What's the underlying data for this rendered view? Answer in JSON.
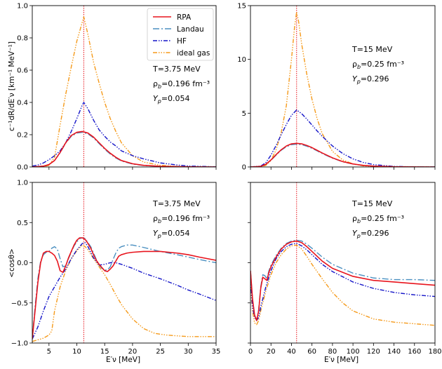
{
  "legend": [
    {
      "key": "rpa",
      "label": "RPA",
      "color": "#e8141d",
      "dash": ""
    },
    {
      "key": "landau",
      "label": "Landau",
      "color": "#4a8fc0",
      "dash": "9,3,2,3"
    },
    {
      "key": "hf",
      "label": "HF",
      "color": "#1414c8",
      "dash": "6,2,1.5,2,1.5,2"
    },
    {
      "key": "ideal",
      "label": "ideal gas",
      "color": "#f59a1a",
      "dash": "6,2,1.5,2,1.5,2,1.5,2"
    }
  ],
  "ylabels": {
    "top": "c⁻¹dR/dE′ν [km⁻¹ MeV⁻¹]",
    "bottom": "<cosθ>"
  },
  "xlabel": "E′ν [MeV]",
  "chart_data": [
    {
      "id": "p00",
      "type": "line",
      "title": "",
      "xlabel": "",
      "ylabel": "c⁻¹dR/dE′ν [km⁻¹ MeV⁻¹]",
      "xlim": [
        2,
        35
      ],
      "ylim": [
        0,
        1
      ],
      "xticks": [
        5,
        10,
        15,
        20,
        25,
        30,
        35
      ],
      "xticklabels": [
        "",
        "",
        "",
        "",
        "",
        "",
        ""
      ],
      "yticks": [
        0,
        0.2,
        0.4,
        0.6,
        0.8,
        1.0
      ],
      "yticklabels": [
        "0.0",
        "0.2",
        "0.4",
        "0.6",
        "0.8",
        "1.0"
      ],
      "vline": 11.25,
      "legend": true,
      "annotation": [
        "T=3.75 MeV",
        "ρb=0.196 fm⁻³",
        "Yp=0.054"
      ],
      "series": [
        {
          "name": "RPA",
          "x": [
            2,
            4,
            5,
            6,
            7,
            8,
            9,
            10,
            11,
            12,
            13,
            14,
            15,
            16,
            17,
            18,
            20,
            22,
            25,
            30,
            35
          ],
          "y": [
            0,
            0.005,
            0.015,
            0.04,
            0.09,
            0.15,
            0.195,
            0.215,
            0.22,
            0.21,
            0.185,
            0.15,
            0.115,
            0.085,
            0.06,
            0.04,
            0.02,
            0.01,
            0.004,
            0.001,
            0
          ]
        },
        {
          "name": "Landau",
          "x": [
            2,
            4,
            5,
            6,
            7,
            8,
            9,
            10,
            11,
            12,
            13,
            14,
            15,
            16,
            17,
            18,
            20,
            22,
            25,
            30,
            35
          ],
          "y": [
            0,
            0.005,
            0.015,
            0.04,
            0.088,
            0.148,
            0.19,
            0.21,
            0.215,
            0.205,
            0.18,
            0.145,
            0.11,
            0.08,
            0.056,
            0.037,
            0.018,
            0.009,
            0.003,
            0.001,
            0
          ]
        },
        {
          "name": "HF",
          "x": [
            2,
            3,
            4,
            5,
            6,
            7,
            8,
            9,
            10,
            11,
            11.25,
            12,
            13,
            14,
            15,
            16,
            17,
            18,
            20,
            22,
            25,
            28,
            30,
            35
          ],
          "y": [
            0.005,
            0.012,
            0.025,
            0.045,
            0.07,
            0.1,
            0.15,
            0.22,
            0.3,
            0.385,
            0.4,
            0.36,
            0.29,
            0.23,
            0.19,
            0.155,
            0.13,
            0.1,
            0.07,
            0.05,
            0.025,
            0.012,
            0.006,
            0.001
          ]
        },
        {
          "name": "ideal gas",
          "x": [
            2,
            4,
            5,
            6,
            7,
            8,
            9,
            10,
            11,
            11.25,
            12,
            13,
            14,
            15,
            16,
            17,
            18,
            20,
            22,
            25,
            28,
            30,
            35
          ],
          "y": [
            0,
            0.003,
            0.01,
            0.06,
            0.26,
            0.45,
            0.62,
            0.78,
            0.9,
            0.93,
            0.82,
            0.65,
            0.52,
            0.4,
            0.3,
            0.22,
            0.15,
            0.07,
            0.03,
            0.01,
            0.003,
            0.001,
            0
          ]
        }
      ]
    },
    {
      "id": "p01",
      "type": "line",
      "title": "",
      "xlabel": "",
      "ylabel": "",
      "xlim": [
        0,
        180
      ],
      "ylim": [
        0,
        15
      ],
      "xticks": [
        0,
        20,
        40,
        60,
        80,
        100,
        120,
        140,
        160,
        180
      ],
      "xticklabels": [
        "",
        "",
        "",
        "",
        "",
        "",
        "",
        "",
        "",
        ""
      ],
      "yticks": [
        0,
        5,
        10,
        15
      ],
      "yticklabels": [
        "0",
        "5",
        "10",
        "15"
      ],
      "vline": 45,
      "legend": false,
      "annotation": [
        "T=15 MeV",
        "ρb=0.25 fm⁻³",
        "Yp=0.296"
      ],
      "series": [
        {
          "name": "RPA",
          "x": [
            0,
            10,
            15,
            20,
            25,
            30,
            35,
            40,
            45,
            50,
            55,
            60,
            65,
            70,
            80,
            90,
            100,
            110,
            120,
            140,
            160,
            180
          ],
          "y": [
            0,
            0.05,
            0.25,
            0.65,
            1.15,
            1.6,
            1.95,
            2.15,
            2.2,
            2.15,
            2.0,
            1.8,
            1.55,
            1.3,
            0.85,
            0.5,
            0.28,
            0.15,
            0.08,
            0.02,
            0.005,
            0
          ]
        },
        {
          "name": "Landau",
          "x": [
            0,
            10,
            15,
            20,
            25,
            30,
            35,
            40,
            45,
            50,
            55,
            60,
            65,
            70,
            80,
            90,
            100,
            110,
            120,
            140,
            160,
            180
          ],
          "y": [
            0,
            0.05,
            0.24,
            0.62,
            1.1,
            1.55,
            1.88,
            2.07,
            2.12,
            2.07,
            1.93,
            1.73,
            1.5,
            1.25,
            0.82,
            0.48,
            0.27,
            0.14,
            0.07,
            0.02,
            0.005,
            0
          ]
        },
        {
          "name": "HF",
          "x": [
            0,
            10,
            15,
            20,
            25,
            30,
            35,
            40,
            45,
            50,
            55,
            60,
            65,
            70,
            80,
            90,
            100,
            110,
            120,
            140,
            160,
            180
          ],
          "y": [
            0,
            0.08,
            0.4,
            1.1,
            2.0,
            3.0,
            3.95,
            4.8,
            5.3,
            4.95,
            4.45,
            3.9,
            3.35,
            2.85,
            1.95,
            1.25,
            0.75,
            0.42,
            0.22,
            0.05,
            0.01,
            0
          ]
        },
        {
          "name": "ideal gas",
          "x": [
            0,
            10,
            15,
            20,
            25,
            30,
            35,
            40,
            43,
            45,
            47,
            50,
            55,
            60,
            65,
            70,
            80,
            90,
            100,
            110,
            120,
            140,
            160,
            180
          ],
          "y": [
            0,
            0.02,
            0.15,
            0.6,
            1.6,
            3.2,
            5.7,
            10.0,
            13.0,
            14.4,
            13.5,
            11.4,
            8.6,
            6.3,
            4.5,
            3.1,
            1.45,
            0.65,
            0.28,
            0.1,
            0.03,
            0.003,
            0,
            0
          ]
        }
      ]
    },
    {
      "id": "p10",
      "type": "line",
      "title": "",
      "xlabel": "E′ν [MeV]",
      "ylabel": "<cosθ>",
      "xlim": [
        2,
        35
      ],
      "ylim": [
        -1,
        1
      ],
      "xticks": [
        5,
        10,
        15,
        20,
        25,
        30,
        35
      ],
      "xticklabels": [
        "5",
        "10",
        "15",
        "20",
        "25",
        "30",
        "35"
      ],
      "yticks": [
        -1,
        -0.5,
        0,
        0.5,
        1
      ],
      "yticklabels": [
        "−1.0",
        "−0.5",
        "0.0",
        "0.5",
        "1.0"
      ],
      "vline": 11.25,
      "legend": false,
      "annotation": [
        "T=3.75 MeV",
        "ρb=0.196 fm⁻³",
        "Yp=0.054"
      ],
      "series": [
        {
          "name": "RPA",
          "x": [
            2,
            2.5,
            3,
            3.5,
            4,
            4.5,
            5,
            5.5,
            6,
            6.5,
            7,
            7.5,
            8,
            8.5,
            9,
            9.5,
            10,
            10.5,
            11,
            11.5,
            12,
            12.5,
            13,
            13.5,
            14,
            14.5,
            15,
            15.5,
            16,
            16.5,
            17,
            17.5,
            18,
            19,
            20,
            22,
            25,
            28,
            30,
            32,
            35
          ],
          "y": [
            -0.95,
            -0.6,
            -0.25,
            0,
            0.12,
            0.14,
            0.14,
            0.12,
            0.09,
            0.02,
            -0.1,
            -0.12,
            -0.04,
            0.06,
            0.14,
            0.22,
            0.28,
            0.31,
            0.31,
            0.29,
            0.24,
            0.18,
            0.1,
            0.03,
            -0.02,
            -0.06,
            -0.1,
            -0.11,
            -0.08,
            -0.04,
            0.02,
            0.08,
            0.1,
            0.12,
            0.13,
            0.14,
            0.14,
            0.12,
            0.1,
            0.07,
            0.03
          ]
        },
        {
          "name": "Landau",
          "x": [
            2,
            2.5,
            3,
            3.5,
            4,
            4.5,
            5,
            5.5,
            6,
            6.5,
            7,
            7.5,
            8,
            8.5,
            9,
            9.5,
            10,
            10.5,
            11,
            11.5,
            12,
            12.5,
            13,
            13.5,
            14,
            14.5,
            15,
            15.5,
            16,
            16.5,
            17,
            17.5,
            18,
            19,
            20,
            22,
            25,
            28,
            30,
            32,
            35
          ],
          "y": [
            -0.95,
            -0.55,
            -0.2,
            0.02,
            0.1,
            0.13,
            0.14,
            0.18,
            0.2,
            0.17,
            0.05,
            -0.05,
            -0.04,
            0.05,
            0.13,
            0.21,
            0.26,
            0.3,
            0.31,
            0.3,
            0.25,
            0.2,
            0.12,
            0.04,
            -0.03,
            -0.07,
            -0.09,
            -0.09,
            -0.05,
            0.04,
            0.12,
            0.18,
            0.2,
            0.22,
            0.22,
            0.19,
            0.14,
            0.1,
            0.07,
            0.04,
            0
          ]
        },
        {
          "name": "HF",
          "x": [
            2,
            3,
            4,
            5,
            6,
            7,
            8,
            9,
            10,
            11,
            11.5,
            12,
            13,
            14,
            15,
            16,
            17,
            18,
            20,
            22,
            25,
            28,
            30,
            32,
            35
          ],
          "y": [
            -0.95,
            -0.8,
            -0.6,
            -0.42,
            -0.3,
            -0.18,
            -0.08,
            0.05,
            0.16,
            0.24,
            0.25,
            0.2,
            0.06,
            -0.03,
            -0.02,
            0,
            0,
            -0.02,
            -0.07,
            -0.13,
            -0.2,
            -0.28,
            -0.34,
            -0.39,
            -0.47
          ]
        },
        {
          "name": "ideal gas",
          "x": [
            2,
            3,
            4,
            5,
            5.5,
            6,
            7,
            8,
            9,
            10,
            11,
            11.5,
            12,
            13,
            14,
            15,
            16,
            17,
            18,
            20,
            22,
            24,
            26,
            28,
            30,
            32,
            35
          ],
          "y": [
            -0.98,
            -0.96,
            -0.94,
            -0.9,
            -0.85,
            -0.6,
            -0.3,
            -0.1,
            0.05,
            0.15,
            0.22,
            0.2,
            0.16,
            0.05,
            -0.05,
            -0.15,
            -0.27,
            -0.4,
            -0.52,
            -0.7,
            -0.82,
            -0.88,
            -0.9,
            -0.91,
            -0.92,
            -0.92,
            -0.92
          ]
        }
      ]
    },
    {
      "id": "p11",
      "type": "line",
      "title": "",
      "xlabel": "E′ν [MeV]",
      "ylabel": "",
      "xlim": [
        0,
        180
      ],
      "ylim": [
        -1,
        1
      ],
      "xticks": [
        0,
        20,
        40,
        60,
        80,
        100,
        120,
        140,
        160,
        180
      ],
      "xticklabels": [
        "0",
        "20",
        "40",
        "60",
        "80",
        "100",
        "120",
        "140",
        "160",
        "180"
      ],
      "yticks": [
        -1,
        -0.5,
        0,
        0.5,
        1
      ],
      "yticklabels": [
        "",
        "",
        "",
        "",
        ""
      ],
      "vline": 45,
      "legend": false,
      "annotation": [
        "T=15 MeV",
        "ρb=0.25 fm⁻³",
        "Yp=0.296"
      ],
      "series": [
        {
          "name": "RPA",
          "x": [
            0,
            2,
            4,
            6,
            8,
            10,
            12,
            14,
            16,
            18,
            20,
            25,
            30,
            35,
            40,
            45,
            50,
            55,
            60,
            70,
            80,
            100,
            120,
            140,
            160,
            180
          ],
          "y": [
            -0.1,
            -0.45,
            -0.65,
            -0.72,
            -0.6,
            -0.32,
            -0.18,
            -0.2,
            -0.22,
            -0.12,
            -0.05,
            0.07,
            0.17,
            0.23,
            0.26,
            0.27,
            0.25,
            0.2,
            0.14,
            0.02,
            -0.07,
            -0.17,
            -0.22,
            -0.24,
            -0.26,
            -0.28
          ]
        },
        {
          "name": "Landau",
          "x": [
            0,
            2,
            4,
            6,
            8,
            10,
            12,
            14,
            16,
            18,
            20,
            25,
            30,
            35,
            40,
            45,
            50,
            55,
            60,
            70,
            80,
            100,
            120,
            140,
            160,
            180
          ],
          "y": [
            -0.1,
            -0.45,
            -0.65,
            -0.72,
            -0.58,
            -0.3,
            -0.15,
            -0.16,
            -0.2,
            -0.1,
            -0.03,
            0.09,
            0.18,
            0.24,
            0.27,
            0.28,
            0.27,
            0.23,
            0.18,
            0.07,
            -0.02,
            -0.13,
            -0.19,
            -0.21,
            -0.21,
            -0.22
          ]
        },
        {
          "name": "HF",
          "x": [
            0,
            2,
            4,
            6,
            8,
            10,
            15,
            20,
            25,
            30,
            35,
            40,
            45,
            50,
            55,
            60,
            70,
            80,
            100,
            120,
            140,
            160,
            180
          ],
          "y": [
            -0.2,
            -0.55,
            -0.68,
            -0.72,
            -0.68,
            -0.55,
            -0.3,
            -0.1,
            0.05,
            0.14,
            0.2,
            0.23,
            0.24,
            0.21,
            0.16,
            0.1,
            -0.02,
            -0.11,
            -0.24,
            -0.32,
            -0.37,
            -0.4,
            -0.42
          ]
        },
        {
          "name": "ideal gas",
          "x": [
            0,
            2,
            4,
            6,
            8,
            10,
            15,
            20,
            25,
            30,
            35,
            40,
            45,
            50,
            55,
            60,
            70,
            80,
            90,
            100,
            120,
            140,
            160,
            180
          ],
          "y": [
            -0.3,
            -0.6,
            -0.75,
            -0.77,
            -0.72,
            -0.6,
            -0.35,
            -0.15,
            0,
            0.1,
            0.17,
            0.21,
            0.22,
            0.17,
            0.08,
            -0.02,
            -0.2,
            -0.37,
            -0.5,
            -0.6,
            -0.7,
            -0.74,
            -0.76,
            -0.78
          ]
        }
      ]
    }
  ]
}
